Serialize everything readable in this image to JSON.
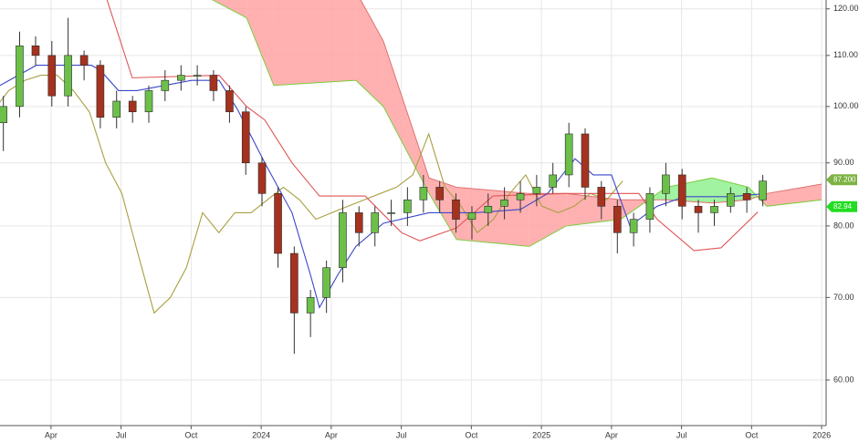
{
  "chart_data": {
    "type": "candlestick",
    "log_scale": true,
    "grid": true,
    "xlim": [
      2023.068,
      2026.016
    ],
    "ylim": [
      55.1,
      122
    ],
    "xticks": [
      {
        "value": 2023.25,
        "label": "Apr"
      },
      {
        "value": 2023.5,
        "label": "Jul"
      },
      {
        "value": 2023.75,
        "label": "Oct"
      },
      2024,
      {
        "value": 2024.25,
        "label": "Apr"
      },
      {
        "value": 2024.5,
        "label": "Jul"
      },
      {
        "value": 2024.75,
        "label": "Oct"
      },
      2025,
      {
        "value": 2025.25,
        "label": "Apr"
      },
      {
        "value": 2025.5,
        "label": "Jul"
      },
      {
        "value": 2025.75,
        "label": "Oct"
      },
      2026
    ],
    "yticks": [
      {
        "value": 60,
        "label": "60.00"
      },
      {
        "value": 70,
        "label": "70.00"
      },
      {
        "value": 80,
        "label": "80.00"
      },
      {
        "value": 90,
        "label": "90.00"
      },
      {
        "value": 100,
        "label": "100.00"
      },
      {
        "value": 110,
        "label": "110.00"
      },
      {
        "value": 120,
        "label": "120.00"
      }
    ],
    "cloud": {
      "x": [
        2023.768,
        2023.948,
        2024.045,
        2024.338,
        2024.436,
        2024.599,
        2024.697,
        2024.957,
        2025.088,
        2025.283,
        2025.446,
        2025.609,
        2025.739,
        2025.804,
        2026.0
      ],
      "span_a": [
        124,
        118,
        104,
        105,
        100,
        85,
        78,
        77,
        80,
        81,
        86,
        87.5,
        86,
        83,
        84
      ],
      "span_b": [
        124,
        124,
        124,
        124,
        113,
        87.5,
        86,
        85,
        85,
        84,
        84,
        83.5,
        84,
        85,
        86.5
      ],
      "up_color": "#90f090",
      "down_color": "#ffa3a3",
      "span_a_color": "#7ccc3c",
      "span_b_color": "#e07070"
    },
    "lines": [
      {
        "color": "#a8a040",
        "x": [
          2023.041,
          2023.099,
          2023.157,
          2023.214,
          2023.272,
          2023.33,
          2023.387,
          2023.445,
          2023.503,
          2023.56,
          2023.618,
          2023.676,
          2023.733,
          2023.791,
          2023.849,
          2023.906,
          2023.964,
          2024.022,
          2024.079,
          2024.137,
          2024.195,
          2024.252,
          2024.31,
          2024.368,
          2024.425,
          2024.483,
          2024.541,
          2024.598,
          2024.656,
          2024.714,
          2024.771,
          2024.829,
          2024.887,
          2024.944,
          2025.002,
          2025.06,
          2025.117,
          2025.175,
          2025.233,
          2025.29
        ],
        "values": [
          99,
          103,
          105,
          106,
          106,
          103,
          99,
          90,
          85,
          76,
          68,
          70,
          74,
          82,
          79,
          82,
          82,
          84,
          86,
          84,
          81,
          82,
          83,
          84,
          85,
          86,
          88,
          95,
          86,
          83,
          79,
          81,
          85,
          88,
          83,
          82,
          83,
          85,
          84,
          87
        ]
      },
      {
        "color": "#e05555",
        "x": [
          2023.44,
          2023.54,
          2023.85,
          2023.948,
          2024.013,
          2024.11,
          2024.208,
          2024.371,
          2024.501,
          2024.566,
          2024.697,
          2024.827,
          2025.088,
          2025.348,
          2025.413,
          2025.544,
          2025.641,
          2025.772
        ],
        "values": [
          124,
          105.5,
          106,
          100,
          97.5,
          90,
          84.6,
          84.6,
          79,
          77.8,
          79.7,
          84.6,
          85,
          85,
          81,
          76.4,
          76.8,
          82.1
        ]
      },
      {
        "color": "#3a47c9",
        "x": [
          2023.068,
          2023.198,
          2023.394,
          2023.426,
          2023.491,
          2023.557,
          2023.654,
          2023.752,
          2023.85,
          2023.915,
          2024.013,
          2024.11,
          2024.176,
          2024.208,
          2024.273,
          2024.338,
          2024.436,
          2024.599,
          2024.762,
          2024.925,
          2025.022,
          2025.12,
          2025.185,
          2025.25,
          2025.316,
          2025.413,
          2025.511,
          2025.674,
          2025.804
        ],
        "values": [
          104,
          108,
          108,
          107,
          103,
          103,
          104,
          105,
          105,
          99.5,
          90,
          82,
          73,
          68.7,
          73,
          77,
          80.4,
          82,
          82,
          82.5,
          85,
          90.7,
          88,
          88,
          80,
          83,
          84.5,
          84.5,
          85
        ]
      }
    ],
    "candles": {
      "up_color": "#6cc04a",
      "down_color": "#a5321f",
      "x": [
        2023.08,
        2023.138,
        2023.195,
        2023.253,
        2023.311,
        2023.368,
        2023.426,
        2023.484,
        2023.541,
        2023.599,
        2023.657,
        2023.714,
        2023.772,
        2023.83,
        2023.887,
        2023.945,
        2024.003,
        2024.06,
        2024.118,
        2024.176,
        2024.233,
        2024.291,
        2024.349,
        2024.406,
        2024.464,
        2024.522,
        2024.579,
        2024.637,
        2024.695,
        2024.752,
        2024.81,
        2024.868,
        2024.925,
        2024.983,
        2025.041,
        2025.098,
        2025.156,
        2025.214,
        2025.271,
        2025.329,
        2025.387,
        2025.444,
        2025.502,
        2025.56,
        2025.617,
        2025.675,
        2025.733,
        2025.79
      ],
      "open": [
        97,
        100,
        112,
        110,
        102,
        110,
        108,
        98,
        101,
        99,
        103,
        105,
        106,
        106,
        103,
        99,
        90,
        85,
        76,
        68,
        70,
        74,
        82,
        79,
        82,
        82,
        84,
        86,
        84,
        81,
        82,
        83,
        84,
        85,
        86,
        88,
        95,
        86,
        83,
        79,
        81,
        85,
        88,
        83,
        82,
        83,
        85,
        84
      ],
      "high": [
        102,
        115,
        114,
        113,
        118,
        111,
        109,
        103,
        102,
        104,
        107,
        108,
        108,
        107,
        104,
        100,
        91,
        86,
        77,
        71,
        75,
        84,
        83,
        83,
        84,
        86,
        88,
        87,
        85,
        83,
        85,
        86,
        87,
        88,
        90,
        97,
        96,
        87,
        84,
        82,
        86,
        90,
        89,
        84,
        84,
        86,
        86,
        88
      ],
      "low": [
        92,
        98,
        108,
        100,
        100,
        105,
        96,
        96,
        97,
        97,
        101,
        103,
        104,
        101,
        97,
        88,
        83,
        74,
        63,
        65,
        68,
        72,
        77,
        77,
        80,
        80,
        82,
        82,
        79,
        78,
        80,
        81,
        82,
        83,
        85,
        86,
        84,
        81,
        76,
        77,
        79,
        83,
        81,
        79,
        80,
        82,
        82,
        83
      ],
      "close": [
        100,
        112,
        110,
        102,
        110,
        108,
        98,
        101,
        99,
        103,
        105,
        106,
        106,
        103,
        99,
        90,
        85,
        76,
        68,
        70,
        74,
        82,
        79,
        82,
        82,
        84,
        86,
        84,
        81,
        82,
        83,
        84,
        85,
        86,
        88,
        95,
        86,
        83,
        79,
        81,
        85,
        88,
        83,
        82,
        83,
        85,
        84,
        87
      ]
    },
    "price_labels": [
      {
        "value": 87.2,
        "label": "87.200",
        "color": "#7cb342"
      },
      {
        "value": 82.94,
        "label": "82.94",
        "color": "#22dd22"
      }
    ]
  }
}
